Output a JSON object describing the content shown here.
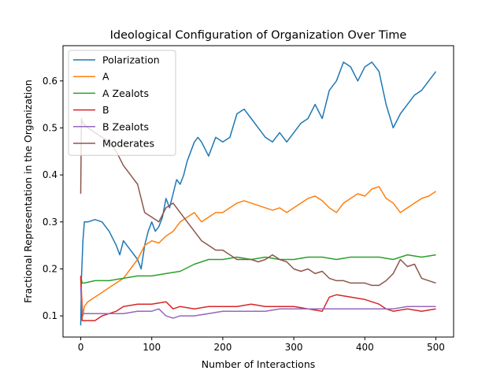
{
  "chart_data": {
    "type": "line",
    "title": "Ideological Configuration of Organization Over Time",
    "xlabel": "Number of Interactions",
    "ylabel": "Fractional Representation in the Organization",
    "xlim": [
      -25,
      525
    ],
    "ylim": [
      0.055,
      0.675
    ],
    "xticks": [
      0,
      100,
      200,
      300,
      400,
      500
    ],
    "yticks": [
      0.1,
      0.2,
      0.3,
      0.4,
      0.5,
      0.6
    ],
    "ytick_labels": [
      "0.1",
      "0.2",
      "0.3",
      "0.4",
      "0.5",
      "0.6"
    ],
    "grid": false,
    "legend": "top-left",
    "series": [
      {
        "name": "Polarization",
        "color": "#1f77b4",
        "x": [
          0,
          1,
          3,
          5,
          10,
          20,
          30,
          40,
          50,
          55,
          60,
          70,
          80,
          85,
          90,
          95,
          100,
          105,
          110,
          115,
          120,
          125,
          130,
          135,
          140,
          145,
          150,
          155,
          160,
          165,
          170,
          180,
          190,
          200,
          210,
          220,
          230,
          240,
          250,
          260,
          270,
          280,
          290,
          300,
          310,
          320,
          330,
          340,
          350,
          360,
          370,
          380,
          390,
          400,
          410,
          420,
          430,
          440,
          450,
          460,
          470,
          480,
          490,
          500
        ],
        "y": [
          0.08,
          0.18,
          0.26,
          0.3,
          0.3,
          0.305,
          0.3,
          0.28,
          0.25,
          0.23,
          0.26,
          0.24,
          0.22,
          0.2,
          0.25,
          0.28,
          0.3,
          0.28,
          0.29,
          0.31,
          0.35,
          0.33,
          0.36,
          0.39,
          0.38,
          0.4,
          0.43,
          0.45,
          0.47,
          0.48,
          0.47,
          0.44,
          0.48,
          0.47,
          0.48,
          0.53,
          0.54,
          0.52,
          0.5,
          0.48,
          0.47,
          0.49,
          0.47,
          0.49,
          0.51,
          0.52,
          0.55,
          0.52,
          0.58,
          0.6,
          0.64,
          0.63,
          0.6,
          0.63,
          0.64,
          0.62,
          0.55,
          0.5,
          0.53,
          0.55,
          0.57,
          0.58,
          0.6,
          0.62
        ]
      },
      {
        "name": "A",
        "color": "#ff7f0e",
        "x": [
          0,
          3,
          5,
          10,
          20,
          30,
          40,
          50,
          60,
          70,
          80,
          90,
          100,
          110,
          120,
          130,
          140,
          150,
          160,
          170,
          180,
          190,
          200,
          210,
          220,
          230,
          240,
          250,
          260,
          270,
          280,
          290,
          300,
          310,
          320,
          330,
          340,
          350,
          360,
          370,
          380,
          390,
          400,
          410,
          420,
          430,
          440,
          450,
          460,
          470,
          480,
          490,
          500
        ],
        "y": [
          0.18,
          0.1,
          0.12,
          0.13,
          0.14,
          0.15,
          0.16,
          0.17,
          0.18,
          0.2,
          0.22,
          0.25,
          0.26,
          0.255,
          0.27,
          0.28,
          0.3,
          0.31,
          0.32,
          0.3,
          0.31,
          0.32,
          0.32,
          0.33,
          0.34,
          0.345,
          0.34,
          0.335,
          0.33,
          0.325,
          0.33,
          0.32,
          0.33,
          0.34,
          0.35,
          0.355,
          0.345,
          0.33,
          0.32,
          0.34,
          0.35,
          0.36,
          0.355,
          0.37,
          0.375,
          0.35,
          0.34,
          0.32,
          0.33,
          0.34,
          0.35,
          0.355,
          0.365
        ]
      },
      {
        "name": "A Zealots",
        "color": "#2ca02c",
        "x": [
          0,
          2,
          5,
          20,
          40,
          60,
          80,
          100,
          120,
          140,
          160,
          170,
          180,
          200,
          220,
          240,
          260,
          280,
          300,
          320,
          340,
          360,
          380,
          400,
          420,
          440,
          460,
          480,
          500
        ],
        "y": [
          0.185,
          0.17,
          0.17,
          0.175,
          0.175,
          0.18,
          0.185,
          0.185,
          0.19,
          0.195,
          0.21,
          0.215,
          0.22,
          0.22,
          0.225,
          0.22,
          0.225,
          0.22,
          0.22,
          0.225,
          0.225,
          0.22,
          0.225,
          0.225,
          0.225,
          0.22,
          0.23,
          0.225,
          0.23
        ]
      },
      {
        "name": "B",
        "color": "#d62728",
        "x": [
          0,
          2,
          5,
          20,
          30,
          40,
          50,
          60,
          80,
          100,
          120,
          130,
          140,
          160,
          180,
          200,
          220,
          240,
          260,
          280,
          300,
          320,
          340,
          350,
          360,
          380,
          400,
          420,
          430,
          440,
          460,
          480,
          500
        ],
        "y": [
          0.185,
          0.09,
          0.09,
          0.09,
          0.1,
          0.105,
          0.11,
          0.12,
          0.125,
          0.125,
          0.13,
          0.115,
          0.12,
          0.115,
          0.12,
          0.12,
          0.12,
          0.125,
          0.12,
          0.12,
          0.12,
          0.115,
          0.11,
          0.14,
          0.145,
          0.14,
          0.135,
          0.125,
          0.115,
          0.11,
          0.115,
          0.11,
          0.115
        ]
      },
      {
        "name": "B Zealots",
        "color": "#9467bd",
        "x": [
          0,
          2,
          5,
          20,
          40,
          60,
          80,
          100,
          110,
          120,
          130,
          140,
          160,
          180,
          200,
          220,
          240,
          260,
          280,
          300,
          320,
          340,
          360,
          380,
          400,
          420,
          440,
          460,
          480,
          500
        ],
        "y": [
          0.16,
          0.105,
          0.105,
          0.105,
          0.105,
          0.105,
          0.11,
          0.11,
          0.115,
          0.1,
          0.095,
          0.1,
          0.1,
          0.105,
          0.11,
          0.11,
          0.11,
          0.11,
          0.115,
          0.115,
          0.115,
          0.115,
          0.115,
          0.115,
          0.115,
          0.115,
          0.115,
          0.12,
          0.12,
          0.12
        ]
      },
      {
        "name": "Moderates",
        "color": "#8c564b",
        "x": [
          0,
          1,
          3,
          10,
          20,
          30,
          40,
          50,
          60,
          70,
          80,
          85,
          90,
          100,
          110,
          120,
          130,
          140,
          150,
          160,
          170,
          180,
          190,
          200,
          210,
          220,
          230,
          240,
          250,
          260,
          270,
          280,
          290,
          300,
          310,
          320,
          330,
          340,
          350,
          360,
          370,
          380,
          390,
          400,
          410,
          420,
          430,
          440,
          450,
          460,
          470,
          480,
          490,
          500
        ],
        "y": [
          0.36,
          0.52,
          0.51,
          0.5,
          0.49,
          0.48,
          0.47,
          0.45,
          0.42,
          0.4,
          0.38,
          0.35,
          0.32,
          0.31,
          0.3,
          0.33,
          0.34,
          0.32,
          0.3,
          0.28,
          0.26,
          0.25,
          0.24,
          0.24,
          0.23,
          0.22,
          0.22,
          0.22,
          0.215,
          0.22,
          0.23,
          0.22,
          0.215,
          0.2,
          0.195,
          0.2,
          0.19,
          0.195,
          0.18,
          0.175,
          0.175,
          0.17,
          0.17,
          0.17,
          0.165,
          0.165,
          0.175,
          0.19,
          0.22,
          0.205,
          0.21,
          0.18,
          0.175,
          0.17
        ]
      }
    ]
  }
}
